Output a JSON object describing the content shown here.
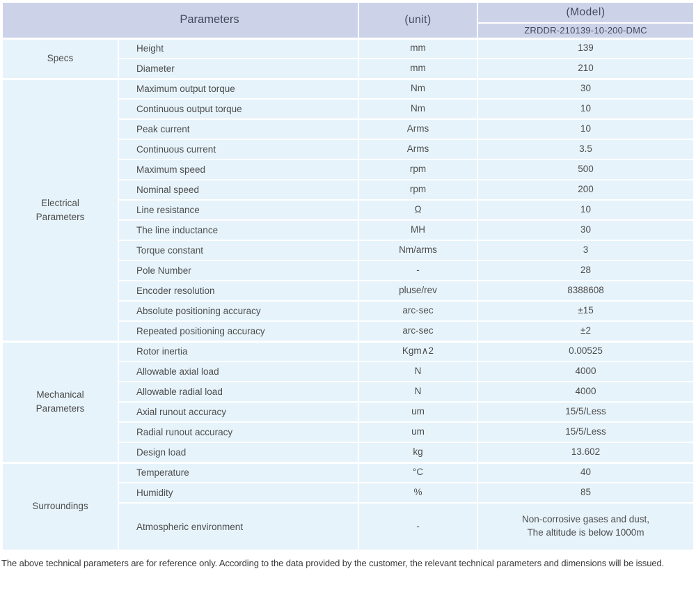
{
  "table": {
    "header": {
      "parameters_label": "Parameters",
      "unit_label": "(unit)",
      "model_label": "(Model)",
      "model_value": "ZRDDR-210139-10-200-DMC"
    },
    "sections": [
      {
        "name": "Specs",
        "rows": [
          {
            "param": "Height",
            "unit": "mm",
            "value": "139"
          },
          {
            "param": "Diameter",
            "unit": "mm",
            "value": "210"
          }
        ]
      },
      {
        "name": "Electrical\nParameters",
        "rows": [
          {
            "param": "Maximum output torque",
            "unit": "Nm",
            "value": "30"
          },
          {
            "param": "Continuous output torque",
            "unit": "Nm",
            "value": "10"
          },
          {
            "param": "Peak current",
            "unit": "Arms",
            "value": "10"
          },
          {
            "param": "Continuous current",
            "unit": "Arms",
            "value": "3.5"
          },
          {
            "param": "Maximum speed",
            "unit": "rpm",
            "value": "500"
          },
          {
            "param": "Nominal speed",
            "unit": "rpm",
            "value": "200"
          },
          {
            "param": "Line resistance",
            "unit": "Ω",
            "value": "10"
          },
          {
            "param": "The line inductance",
            "unit": "MH",
            "value": "30"
          },
          {
            "param": "Torque constant",
            "unit": "Nm/arms",
            "value": "3"
          },
          {
            "param": "Pole Number",
            "unit": "-",
            "value": "28"
          },
          {
            "param": "Encoder resolution",
            "unit": "pluse/rev",
            "value": "8388608"
          },
          {
            "param": "Absolute positioning accuracy",
            "unit": "arc-sec",
            "value": "±15"
          },
          {
            "param": "Repeated positioning accuracy",
            "unit": "arc-sec",
            "value": "±2"
          }
        ]
      },
      {
        "name": "Mechanical\nParameters",
        "rows": [
          {
            "param": "Rotor inertia",
            "unit": "Kgm∧2",
            "value": "0.00525"
          },
          {
            "param": "Allowable axial load",
            "unit": "N",
            "value": "4000"
          },
          {
            "param": "Allowable radial load",
            "unit": "N",
            "value": "4000"
          },
          {
            "param": "Axial runout accuracy",
            "unit": "um",
            "value": "15/5/Less"
          },
          {
            "param": "Radial runout accuracy",
            "unit": "um",
            "value": "15/5/Less"
          },
          {
            "param": "Design load",
            "unit": "kg",
            "value": "13.602"
          }
        ]
      },
      {
        "name": "Surroundings",
        "rows": [
          {
            "param": "Temperature",
            "unit": "°C",
            "value": "40"
          },
          {
            "param": "Humidity",
            "unit": "%",
            "value": "85"
          },
          {
            "param": "Atmospheric environment",
            "unit": "-",
            "value": "Non-corrosive gases and dust,\nThe altitude is below 1000m",
            "tall": true
          }
        ]
      }
    ]
  },
  "footer": {
    "note": "The above technical parameters are for reference only. According to the data provided by the customer, the relevant technical parameters and dimensions will be issued."
  },
  "colors": {
    "header_bg": "#ccd3e9",
    "row_bg": "#e6f3fb",
    "text": "#4d4d4d"
  }
}
